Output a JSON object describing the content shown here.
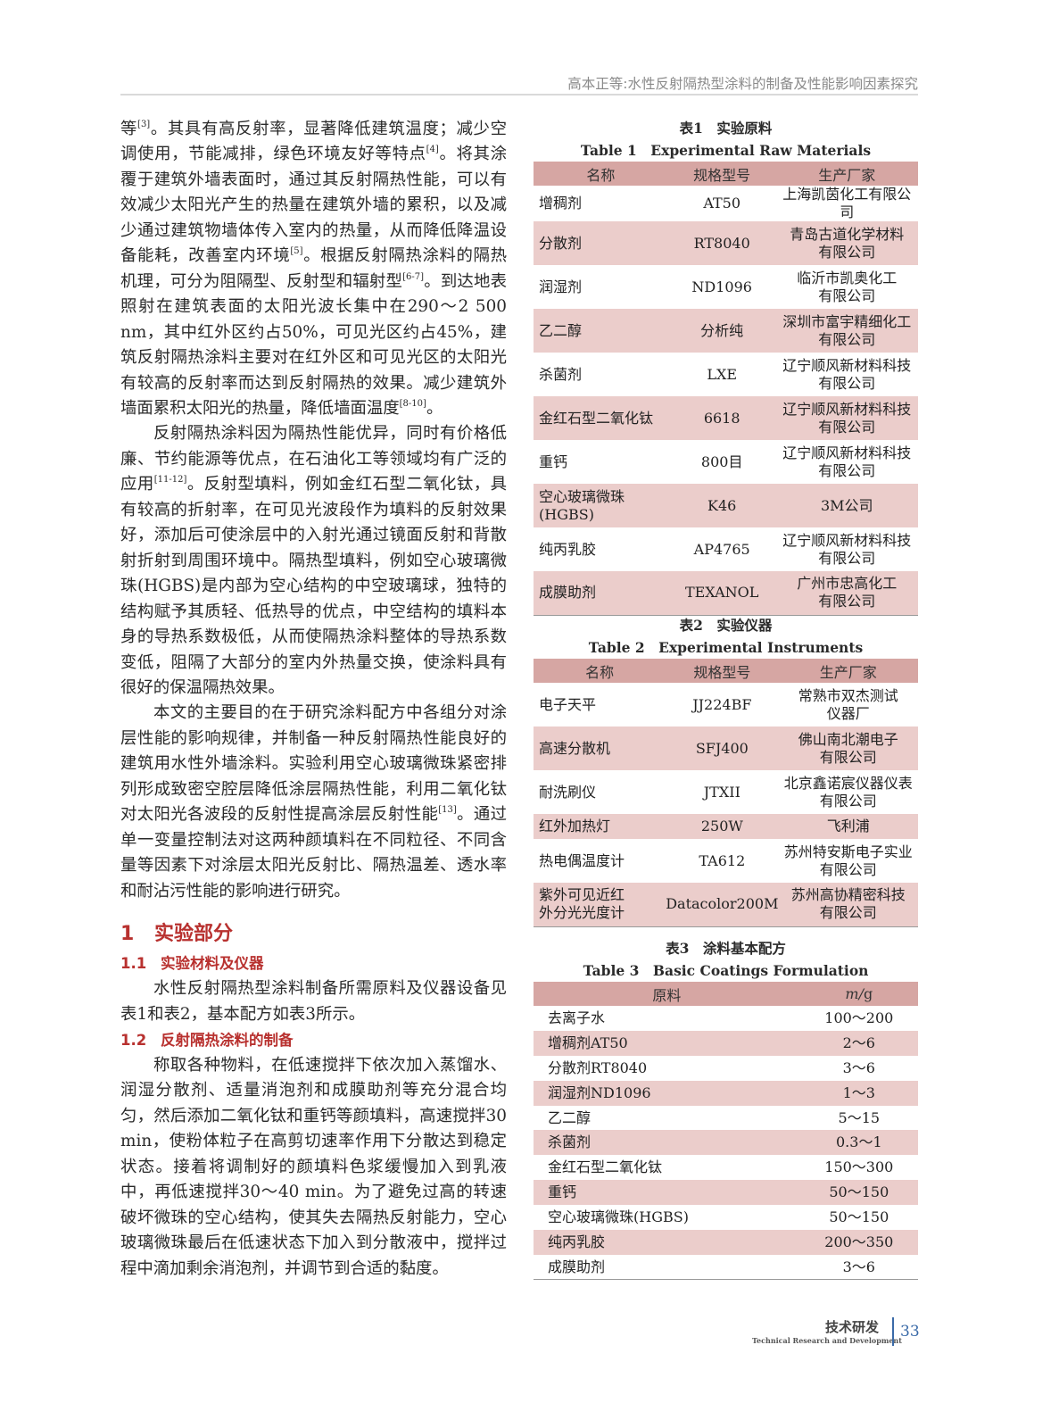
{
  "header": {
    "running_title": "高本正等:水性反射隔热型涂料的制备及性能影响因素探究"
  },
  "left": {
    "p1": [
      [
        "等"
      ],
      [
        "[3]",
        "sup"
      ],
      [
        "。其具有高反射率，显著降低建筑温度；减少空调使用，节能减排，绿色环境友好等特点"
      ],
      [
        "[4]",
        "sup"
      ],
      [
        "。将其涂覆于建筑外墙表面时，通过其反射隔热性能，可以有效减少太阳光产生的热量在建筑外墙的累积，以及减少通过建筑物墙体传入室内的热量，从而降低降温设备能耗，改善室内环境"
      ],
      [
        "[5]",
        "sup"
      ],
      [
        "。根据反射隔热涂料的隔热机理，可分为阻隔型、反射型和辐射型"
      ],
      [
        "[6-7]",
        "sup"
      ],
      [
        "。到达地表照射在建筑表面的太阳光波长集中在290～2 500 nm，其中红外区约占50%，可见光区约占45%，建筑反射隔热涂料主要对在红外区和可见光区的太阳光有较高的反射率而达到反射隔热的效果。减少建筑外墙面累积太阳光的热量，降低墙面温度"
      ],
      [
        "[8-10]",
        "sup"
      ],
      [
        "。"
      ]
    ],
    "p2": [
      [
        "反射隔热涂料因为隔热性能优异，同时有价格低廉、节约能源等优点，在石油化工等领域均有广泛的应用"
      ],
      [
        "[11-12]",
        "sup"
      ],
      [
        "。反射型填料，例如金红石型二氧化钛，具有较高的折射率，在可见光波段作为填料的反射效果好，添加后可使涂层中的入射光通过镜面反射和背散射折射到周围环境中。隔热型填料，例如空心玻璃微珠(HGBS)是内部为空心结构的中空玻璃球，独特的结构赋予其质轻、低热导的优点，中空结构的填料本身的导热系数极低，从而使隔热涂料整体的导热系数变低，阻隔了大部分的室内外热量交换，使涂料具有很好的保温隔热效果。"
      ]
    ],
    "p3": [
      [
        "本文的主要目的在于研究涂料配方中各组分对涂层性能的影响规律，并制备一种反射隔热性能良好的建筑用水性外墙涂料。实验利用空心玻璃微珠紧密排列形成致密空腔层降低涂层隔热性能，利用二氧化钛对太阳光各波段的反射性提高涂层反射性能"
      ],
      [
        "[13]",
        "sup"
      ],
      [
        "。通过单一变量控制法对这两种颜填料在不同粒径、不同含量等因素下对涂层太阳光反射比、隔热温差、透水率和耐沾污性能的影响进行研究。"
      ]
    ],
    "sec1": {
      "num": "1",
      "title": "实验部分"
    },
    "sec11": {
      "num": "1.1",
      "title": "实验材料及仪器"
    },
    "p4": [
      [
        "水性反射隔热型涂料制备所需原料及仪器设备见表1和表2，基本配方如表3所示。"
      ]
    ],
    "sec12": {
      "num": "1.2",
      "title": "反射隔热涂料的制备"
    },
    "p5": [
      [
        "称取各种物料，在低速搅拌下依次加入蒸馏水、润湿分散剂、适量消泡剂和成膜助剂等充分混合均匀，然后添加二氧化钛和重钙等颜填料，高速搅拌30 min，使粉体粒子在高剪切速率作用下分散达到稳定状态。接着将调制好的颜填料色浆缓慢加入到乳液中，再低速搅拌30～40 min。为了避免过高的转速破坏微珠的空心结构，使其失去隔热反射能力，空心玻璃微珠最后在低速状态下加入到分散液中，搅拌过程中滴加剩余消泡剂，并调节到合适的黏度。"
      ]
    ]
  },
  "table1": {
    "cap_cn": "表1　实验原料",
    "cap_en": "Table 1　Experimental Raw Materials",
    "headers": [
      "名称",
      "规格型号",
      "生产厂家"
    ],
    "rows": [
      [
        "增稠剂",
        "AT50",
        "上海凯茵化工有限公司"
      ],
      [
        "分散剂",
        "RT8040",
        "青岛古道化学材料\n有限公司"
      ],
      [
        "润湿剂",
        "ND1096",
        "临沂市凯奥化工\n有限公司"
      ],
      [
        "乙二醇",
        "分析纯",
        "深圳市富宇精细化工\n有限公司"
      ],
      [
        "杀菌剂",
        "LXE",
        "辽宁顺风新材料科技\n有限公司"
      ],
      [
        "金红石型二氧化钛",
        "6618",
        "辽宁顺风新材料科技\n有限公司"
      ],
      [
        "重钙",
        "800目",
        "辽宁顺风新材料科技\n有限公司"
      ],
      [
        "空心玻璃微珠\n(HGBS)",
        "K46",
        "3M公司"
      ],
      [
        "纯丙乳胶",
        "AP4765",
        "辽宁顺风新材料科技\n有限公司"
      ],
      [
        "成膜助剂",
        "TEXANOL",
        "广州市忠高化工\n有限公司"
      ]
    ]
  },
  "table2": {
    "cap_cn": "表2　实验仪器",
    "cap_en": "Table 2　Experimental Instruments",
    "headers": [
      "名称",
      "规格型号",
      "生产厂家"
    ],
    "rows": [
      [
        "电子天平",
        "JJ224BF",
        "常熟市双杰测试\n仪器厂"
      ],
      [
        "高速分散机",
        "SFJ400",
        "佛山南北潮电子\n有限公司"
      ],
      [
        "耐洗刷仪",
        "JTXII",
        "北京鑫诺宸仪器仪表\n有限公司"
      ],
      [
        "红外加热灯",
        "250W",
        "飞利浦"
      ],
      [
        "热电偶温度计",
        "TA612",
        "苏州特安斯电子实业\n有限公司"
      ],
      [
        "紫外可见近红\n外分光光度计",
        "Datacolor200M",
        "苏州高协精密科技\n有限公司"
      ]
    ]
  },
  "table3": {
    "cap_cn": "表3　涂料基本配方",
    "cap_en": "Table 3　Basic Coatings Formulation",
    "headers": [
      "原料",
      "m/g"
    ],
    "rows": [
      [
        "去离子水",
        "100～200"
      ],
      [
        "增稠剂AT50",
        "2～6"
      ],
      [
        "分散剂RT8040",
        "3～6"
      ],
      [
        "润湿剂ND1096",
        "1～3"
      ],
      [
        "乙二醇",
        "5～15"
      ],
      [
        "杀菌剂",
        "0.3～1"
      ],
      [
        "金红石型二氧化钛",
        "150～300"
      ],
      [
        "重钙",
        "50～150"
      ],
      [
        "空心玻璃微珠(HGBS)",
        "50～150"
      ],
      [
        "纯丙乳胶",
        "200～350"
      ],
      [
        "成膜助剂",
        "3～6"
      ]
    ]
  },
  "footer": {
    "section_cn": "技术研发",
    "section_en": "Technical Research and Development",
    "page": "33"
  },
  "colors": {
    "heading": "#b8312f",
    "table_header": "#d6a6a3",
    "table_stripe": "#ebcdcb",
    "page_accent": "#3a6aa8"
  }
}
